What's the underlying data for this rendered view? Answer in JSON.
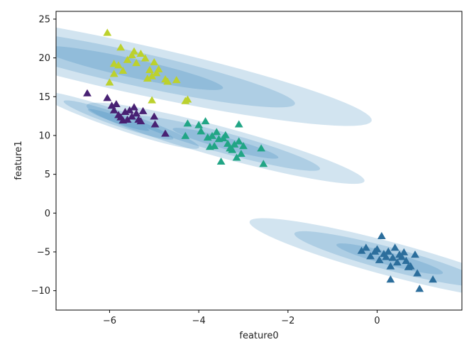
{
  "chart_data": {
    "type": "scatter",
    "title": "",
    "xlabel": "feature0",
    "ylabel": "feature1",
    "xlim": [
      -7.2,
      1.9
    ],
    "ylim": [
      -12.5,
      26
    ],
    "xticks": [
      -6,
      -4,
      -2,
      0
    ],
    "yticks": [
      -10,
      -5,
      0,
      5,
      10,
      15,
      20,
      25
    ],
    "xtick_labels": [
      "−6",
      "−4",
      "−2",
      "0"
    ],
    "ytick_labels": [
      "−10",
      "−5",
      "0",
      "5",
      "10",
      "15",
      "20",
      "25"
    ],
    "grid": false,
    "legend": "none",
    "marker": "triangle",
    "ellipse_color": "#1f77b4",
    "components": [
      {
        "cx": 0.28,
        "cy": -5.9,
        "width": 2.35,
        "height": 12.0,
        "angle_deg": -60.3
      },
      {
        "cx": -5.8,
        "cy": 12.0,
        "width": 1.1,
        "height": 8.2,
        "angle_deg": -64.9
      },
      {
        "cx": -3.4,
        "cy": 9.0,
        "width": 2.1,
        "height": 12.0,
        "angle_deg": -60.2
      },
      {
        "cx": -5.5,
        "cy": 18.7,
        "width": 3.9,
        "height": 18.0,
        "angle_deg": -55.2
      }
    ],
    "series": [
      {
        "color": "#482173",
        "points": [
          [
            -6.5,
            15.4
          ],
          [
            -6.05,
            14.8
          ],
          [
            -5.95,
            13.8
          ],
          [
            -5.9,
            13.2
          ],
          [
            -5.85,
            14.0
          ],
          [
            -5.8,
            12.6
          ],
          [
            -5.75,
            12.3
          ],
          [
            -5.7,
            11.9
          ],
          [
            -5.65,
            13.0
          ],
          [
            -5.6,
            12.0
          ],
          [
            -5.55,
            13.2
          ],
          [
            -5.5,
            12.4
          ],
          [
            -5.45,
            13.6
          ],
          [
            -5.4,
            12.8
          ],
          [
            -5.35,
            12.0
          ],
          [
            -5.3,
            11.8
          ],
          [
            -5.25,
            13.1
          ],
          [
            -5.0,
            12.4
          ],
          [
            -4.98,
            11.4
          ],
          [
            -4.75,
            10.2
          ]
        ]
      },
      {
        "color": "#2c6e9c",
        "points": [
          [
            -0.35,
            -4.9
          ],
          [
            -0.25,
            -4.5
          ],
          [
            -0.15,
            -5.6
          ],
          [
            -0.05,
            -5.0
          ],
          [
            0.0,
            -4.7
          ],
          [
            0.05,
            -6.1
          ],
          [
            0.1,
            -3.0
          ],
          [
            0.15,
            -5.3
          ],
          [
            0.2,
            -5.7
          ],
          [
            0.25,
            -5.0
          ],
          [
            0.3,
            -6.9
          ],
          [
            0.35,
            -5.8
          ],
          [
            0.4,
            -4.5
          ],
          [
            0.45,
            -6.4
          ],
          [
            0.5,
            -5.4
          ],
          [
            0.55,
            -5.7
          ],
          [
            0.6,
            -5.1
          ],
          [
            0.65,
            -6.2
          ],
          [
            0.7,
            -7.0
          ],
          [
            0.75,
            -6.9
          ],
          [
            0.85,
            -5.4
          ],
          [
            0.9,
            -7.8
          ],
          [
            0.95,
            -9.8
          ],
          [
            1.25,
            -8.6
          ],
          [
            0.3,
            -8.6
          ]
        ]
      },
      {
        "color": "#21a585",
        "points": [
          [
            -4.3,
            9.9
          ],
          [
            -4.25,
            11.5
          ],
          [
            -4.0,
            11.3
          ],
          [
            -3.95,
            10.5
          ],
          [
            -3.85,
            11.8
          ],
          [
            -3.8,
            9.7
          ],
          [
            -3.75,
            8.5
          ],
          [
            -3.7,
            9.9
          ],
          [
            -3.65,
            8.6
          ],
          [
            -3.6,
            10.4
          ],
          [
            -3.55,
            9.5
          ],
          [
            -3.5,
            6.6
          ],
          [
            -3.45,
            9.6
          ],
          [
            -3.4,
            10.0
          ],
          [
            -3.35,
            8.9
          ],
          [
            -3.3,
            8.3
          ],
          [
            -3.25,
            8.1
          ],
          [
            -3.2,
            8.8
          ],
          [
            -3.15,
            7.1
          ],
          [
            -3.1,
            9.2
          ],
          [
            -3.05,
            7.6
          ],
          [
            -3.0,
            8.6
          ],
          [
            -3.1,
            11.4
          ],
          [
            -2.6,
            8.3
          ],
          [
            -2.55,
            6.3
          ]
        ]
      },
      {
        "color": "#bcd12d",
        "points": [
          [
            -6.05,
            23.2
          ],
          [
            -6.0,
            16.8
          ],
          [
            -5.9,
            17.9
          ],
          [
            -5.9,
            19.2
          ],
          [
            -5.8,
            19.0
          ],
          [
            -5.75,
            21.3
          ],
          [
            -5.7,
            18.3
          ],
          [
            -5.6,
            19.7
          ],
          [
            -5.5,
            20.3
          ],
          [
            -5.45,
            20.8
          ],
          [
            -5.4,
            19.3
          ],
          [
            -5.3,
            20.5
          ],
          [
            -5.2,
            19.9
          ],
          [
            -5.15,
            17.3
          ],
          [
            -5.1,
            18.4
          ],
          [
            -5.05,
            17.6
          ],
          [
            -5.0,
            19.4
          ],
          [
            -4.95,
            18.0
          ],
          [
            -4.9,
            18.5
          ],
          [
            -4.75,
            17.2
          ],
          [
            -4.7,
            16.9
          ],
          [
            -4.5,
            17.1
          ],
          [
            -4.3,
            14.4
          ],
          [
            -4.25,
            14.6
          ],
          [
            -5.05,
            14.5
          ]
        ]
      }
    ]
  }
}
